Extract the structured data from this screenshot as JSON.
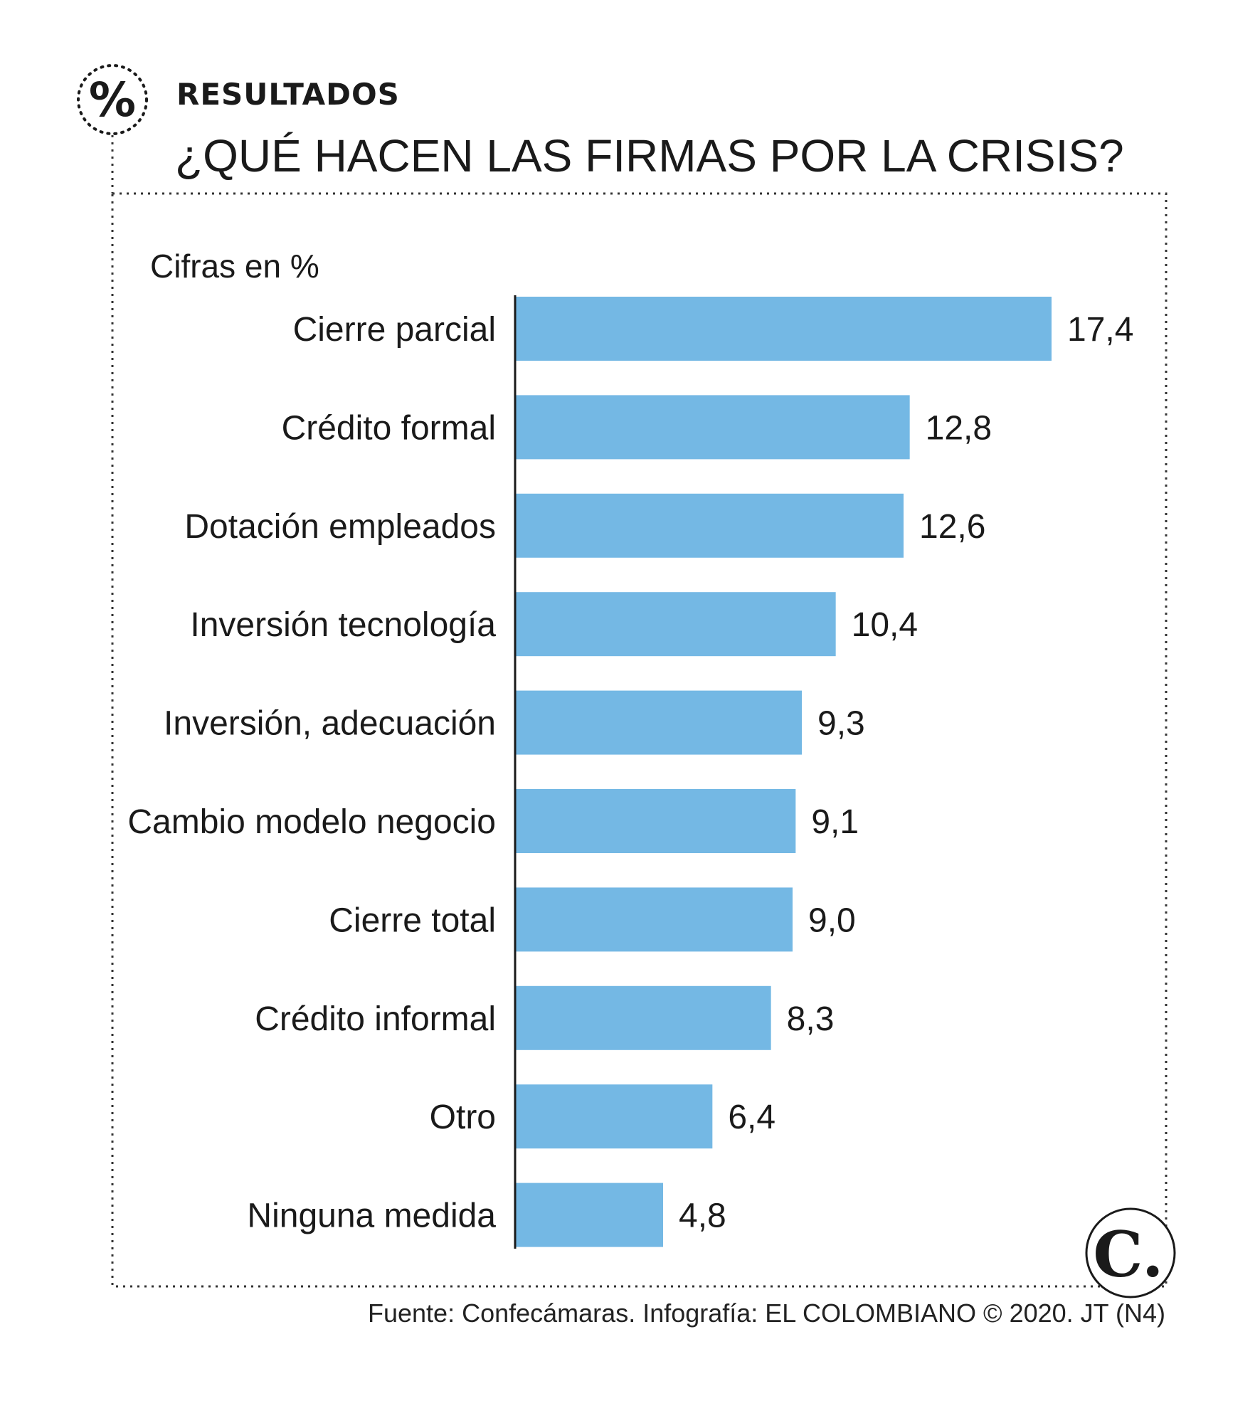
{
  "header": {
    "kicker": "RESULTADOS",
    "title": "¿QUÉ HACEN LAS FIRMAS POR LA CRISIS?",
    "percent_symbol": "%"
  },
  "footer": {
    "source": "Fuente: Confecámaras. Infografía: EL COLOMBIANO © 2020. JT (N4)",
    "logo_letter": "C."
  },
  "colors": {
    "bar": "#74b8e4",
    "text": "#1a1a1a",
    "frame": "#333333"
  },
  "chart_data": {
    "type": "bar",
    "orientation": "horizontal",
    "units_note": "Cifras en %",
    "categories": [
      "Cierre parcial",
      "Crédito formal",
      "Dotación empleados",
      "Inversión tecnología",
      "Inversión, adecuación",
      "Cambio modelo negocio",
      "Cierre total",
      "Crédito informal",
      "Otro",
      "Ninguna medida"
    ],
    "values": [
      17.4,
      12.8,
      12.6,
      10.4,
      9.3,
      9.1,
      9.0,
      8.3,
      6.4,
      4.8
    ],
    "value_labels": [
      "17,4",
      "12,8",
      "12,6",
      "10,4",
      "9,3",
      "9,1",
      "9,0",
      "8,3",
      "6,4",
      "4,8"
    ],
    "xlim": [
      0,
      17.4
    ],
    "grid": false,
    "legend": "none"
  }
}
